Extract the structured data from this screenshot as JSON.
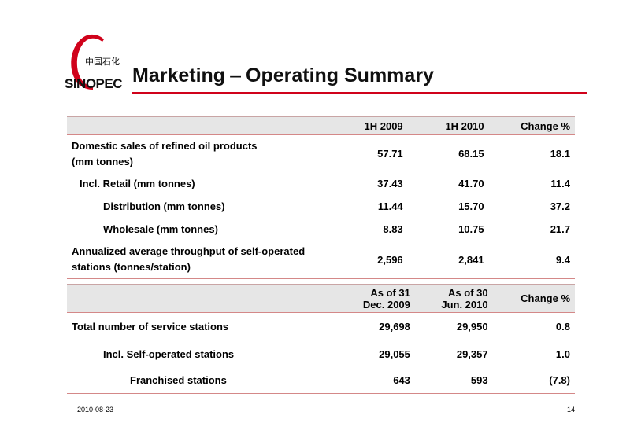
{
  "header": {
    "logo_text_cn": "中国石化",
    "logo_text": "SINOPEC",
    "title_left": "Marketing",
    "title_sep": "–",
    "title_right": "Operating Summary",
    "accent_color": "#d0021b"
  },
  "table1": {
    "columns": [
      "",
      "1H 2009",
      "1H 2010",
      "Change %"
    ],
    "rows": [
      {
        "label_lines": [
          "Domestic sales of refined oil products",
          "(mm tonnes)"
        ],
        "v1": "57.71",
        "v2": "68.15",
        "chg": "18.1"
      },
      {
        "label_lines": [
          "Incl. Retail (mm tonnes)"
        ],
        "v1": "37.43",
        "v2": "41.70",
        "chg": "11.4"
      },
      {
        "label_lines": [
          "Distribution (mm tonnes)"
        ],
        "v1": "11.44",
        "v2": "15.70",
        "chg": "37.2"
      },
      {
        "label_lines": [
          "Wholesale (mm tonnes)"
        ],
        "v1": "8.83",
        "v2": "10.75",
        "chg": "21.7"
      },
      {
        "label_lines": [
          "Annualized average throughput of self-operated",
          "stations (tonnes/station)"
        ],
        "v1": "2,596",
        "v2": "2,841",
        "chg": "9.4"
      }
    ]
  },
  "table2": {
    "columns": [
      {
        "lines": [
          ""
        ]
      },
      {
        "lines": [
          "As of 31",
          "Dec. 2009"
        ]
      },
      {
        "lines": [
          "As of 30",
          "Jun. 2010"
        ]
      },
      {
        "lines": [
          "Change %"
        ]
      }
    ],
    "rows": [
      {
        "label": "Total number of service stations",
        "v1": "29,698",
        "v2": "29,950",
        "chg": "0.8"
      },
      {
        "label": "Incl. Self-operated stations",
        "v1": "29,055",
        "v2": "29,357",
        "chg": "1.0"
      },
      {
        "label": "Franchised stations",
        "v1": "643",
        "v2": "593",
        "chg": "(7.8)"
      }
    ]
  },
  "footer": {
    "date": "2010-08-23",
    "page": "14"
  }
}
